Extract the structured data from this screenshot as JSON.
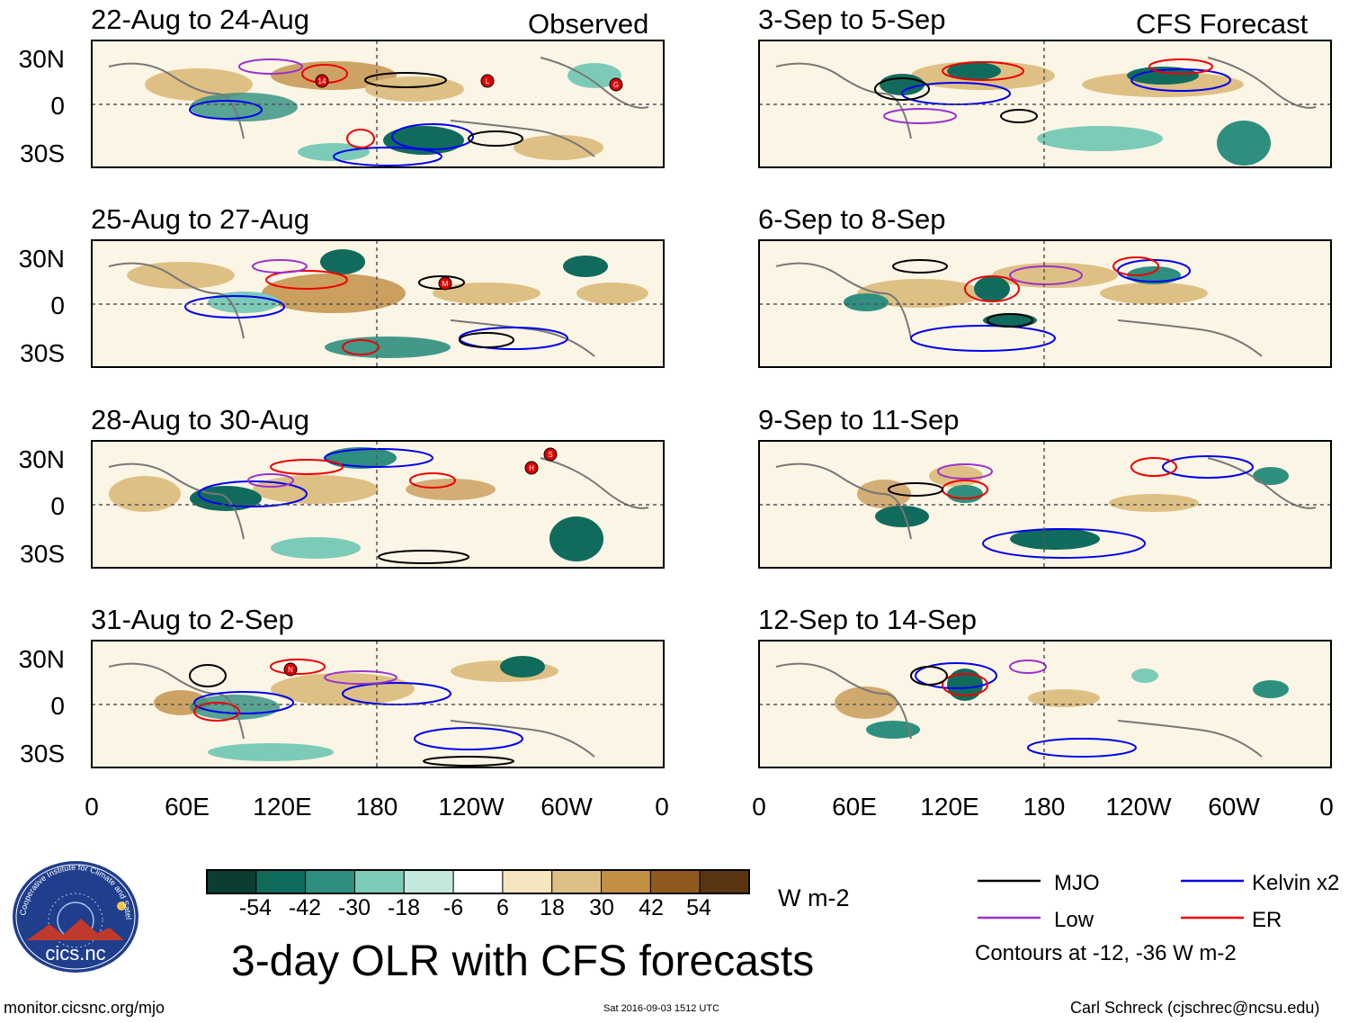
{
  "panels": {
    "observed_header": "Observed",
    "forecast_header": "CFS Forecast",
    "left": [
      {
        "title": "22-Aug to 24-Aug",
        "storms": [
          "14",
          "L",
          "G"
        ]
      },
      {
        "title": "25-Aug to 27-Aug",
        "storms": [
          "M"
        ]
      },
      {
        "title": "28-Aug to 30-Aug",
        "storms": [
          "H",
          "S"
        ]
      },
      {
        "title": "31-Aug to 2-Sep",
        "storms": [
          "N"
        ]
      }
    ],
    "right": [
      {
        "title": "3-Sep to 5-Sep"
      },
      {
        "title": "6-Sep to 8-Sep"
      },
      {
        "title": "9-Sep to 11-Sep"
      },
      {
        "title": "12-Sep to 14-Sep"
      }
    ]
  },
  "axes": {
    "y_labels": [
      "30N",
      "0",
      "30S"
    ],
    "x_labels": [
      "0",
      "60E",
      "120E",
      "180",
      "120W",
      "60W",
      "0"
    ]
  },
  "colorbar": {
    "ticks": [
      "-54",
      "-42",
      "-30",
      "-18",
      "-6",
      "6",
      "18",
      "30",
      "42",
      "54"
    ],
    "units": "W m-2",
    "colors": [
      "#0b3d33",
      "#116b5c",
      "#2e8f7f",
      "#7ccbb8",
      "#c3e9df",
      "#ffffff",
      "#f5e6bf",
      "#dfc084",
      "#c28f45",
      "#8f5a1e",
      "#5a3512"
    ]
  },
  "legend": {
    "mjo": {
      "label": "MJO",
      "color": "#000000"
    },
    "kelvin": {
      "label": "Kelvin x2",
      "color": "#0000ee"
    },
    "low": {
      "label": "Low",
      "color": "#9a32cd"
    },
    "er": {
      "label": "ER",
      "color": "#ee0000"
    },
    "note": "Contours at -12, -36 W m-2"
  },
  "title": "3-day OLR with CFS forecasts",
  "footer": {
    "url": "monitor.cicsnc.org/mjo",
    "timestamp": "Sat 2016-09-03 1512 UTC",
    "author": "Carl Schreck (cjschrec@ncsu.edu)"
  },
  "logo": {
    "arc_text": "Cooperative Institute for Climate and Satellites",
    "name": "cics.nc"
  }
}
